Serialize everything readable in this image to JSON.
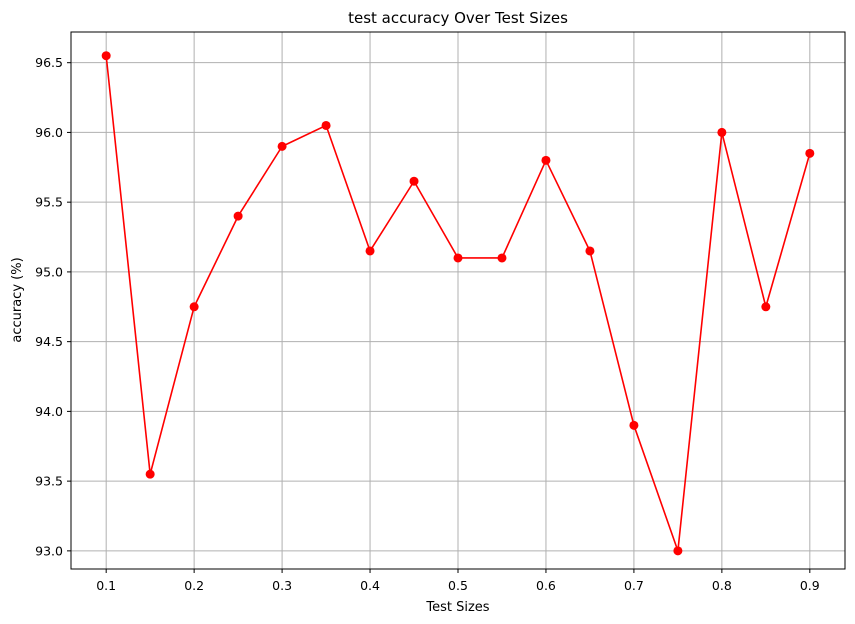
{
  "chart_data": {
    "type": "line",
    "title": "test accuracy Over Test Sizes",
    "xlabel": "Test Sizes",
    "ylabel": "accuracy (%)",
    "x": [
      0.1,
      0.15,
      0.2,
      0.25,
      0.3,
      0.35,
      0.4,
      0.45,
      0.5,
      0.55,
      0.6,
      0.65,
      0.7,
      0.75,
      0.8,
      0.85,
      0.9
    ],
    "series": [
      {
        "values": [
          96.55,
          93.55,
          94.75,
          95.4,
          95.9,
          96.05,
          95.15,
          95.65,
          95.1,
          95.1,
          95.8,
          95.15,
          93.9,
          93.0,
          96.0,
          94.75,
          95.85
        ],
        "color": "#ff0000",
        "marker": "circle"
      }
    ],
    "xlim": [
      0.06,
      0.94
    ],
    "ylim": [
      92.87,
      96.72
    ],
    "xticks": [
      "0.1",
      "0.2",
      "0.3",
      "0.4",
      "0.5",
      "0.6",
      "0.7",
      "0.8",
      "0.9"
    ],
    "yticks": [
      "93.0",
      "93.5",
      "94.0",
      "94.5",
      "95.0",
      "95.5",
      "96.0",
      "96.5"
    ],
    "grid": true,
    "grid_color": "#b0b0b0"
  }
}
